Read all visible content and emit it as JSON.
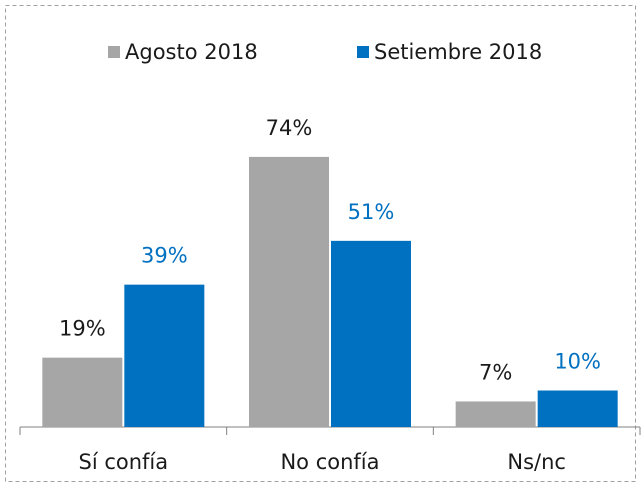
{
  "chart_data": {
    "type": "bar",
    "categories": [
      "Sí confía",
      "No confía",
      "Ns/nc"
    ],
    "series": [
      {
        "name": "Agosto 2018",
        "color": "#a6a6a6",
        "values": [
          19,
          74,
          7
        ],
        "value_labels": [
          "19%",
          "74%",
          "7%"
        ],
        "label_color": "#1a1a1a"
      },
      {
        "name": "Setiembre 2018",
        "color": "#0070c0",
        "values": [
          39,
          51,
          10
        ],
        "value_labels": [
          "39%",
          "51%",
          "10%"
        ],
        "label_color": "#0070c0"
      }
    ],
    "legend": "top"
  }
}
